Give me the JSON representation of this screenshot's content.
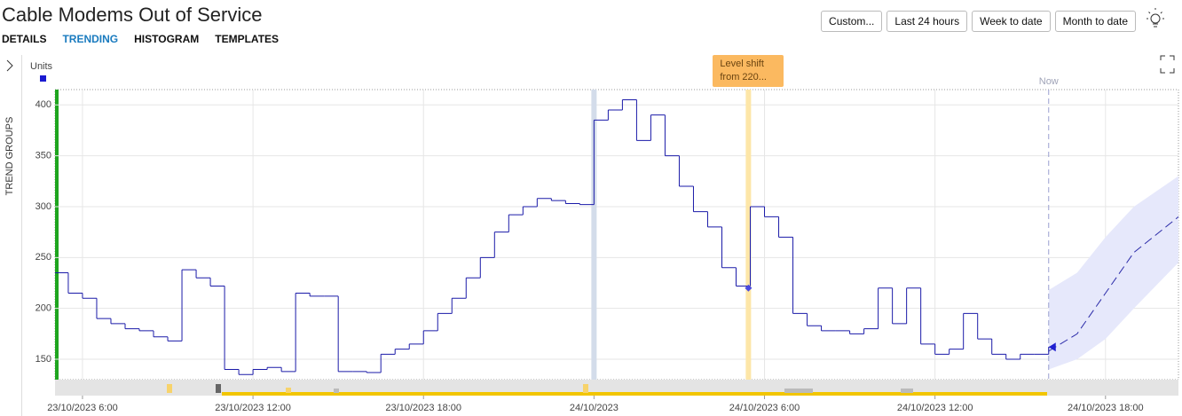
{
  "header": {
    "title": "Cable Modems Out of Service",
    "tabs": [
      "DETAILS",
      "TRENDING",
      "HISTOGRAM",
      "TEMPLATES"
    ],
    "active_tab": 1,
    "buttons": [
      "Custom...",
      "Last 24 hours",
      "Week to date",
      "Month to date"
    ]
  },
  "sidebar": {
    "label": "TREND GROUPS"
  },
  "chart_data": {
    "type": "line",
    "y_label": "Units",
    "color": "#1a1aa8",
    "xlim": [
      "23/10/2023 5:02",
      "24/10/2023 20:34"
    ],
    "xticks": [
      "23/10/2023 6:00",
      "23/10/2023 12:00",
      "23/10/2023 18:00",
      "24/10/2023",
      "24/10/2023 6:00",
      "24/10/2023 12:00",
      "24/10/2023 18:00"
    ],
    "ylim": [
      130,
      415
    ],
    "yticks": [
      150,
      200,
      250,
      300,
      350,
      400
    ],
    "grid": true,
    "x": [
      "23/10/2023 5:02",
      "23/10/2023 5:30",
      "23/10/2023 6:00",
      "23/10/2023 6:30",
      "23/10/2023 7:00",
      "23/10/2023 7:30",
      "23/10/2023 8:00",
      "23/10/2023 8:30",
      "23/10/2023 9:00",
      "23/10/2023 9:30",
      "23/10/2023 10:00",
      "23/10/2023 10:30",
      "23/10/2023 11:00",
      "23/10/2023 11:30",
      "23/10/2023 12:00",
      "23/10/2023 12:30",
      "23/10/2023 13:00",
      "23/10/2023 13:30",
      "23/10/2023 14:00",
      "23/10/2023 14:30",
      "23/10/2023 15:00",
      "23/10/2023 15:30",
      "23/10/2023 16:00",
      "23/10/2023 16:30",
      "23/10/2023 17:00",
      "23/10/2023 17:30",
      "23/10/2023 18:00",
      "23/10/2023 18:30",
      "23/10/2023 19:00",
      "23/10/2023 19:30",
      "23/10/2023 20:00",
      "23/10/2023 20:30",
      "23/10/2023 21:00",
      "23/10/2023 21:30",
      "23/10/2023 22:00",
      "23/10/2023 22:30",
      "23/10/2023 23:00",
      "23/10/2023 23:30",
      "24/10/2023 0:00",
      "24/10/2023 0:30",
      "24/10/2023 1:00",
      "24/10/2023 1:30",
      "24/10/2023 2:00",
      "24/10/2023 2:30",
      "24/10/2023 3:00",
      "24/10/2023 3:30",
      "24/10/2023 4:00",
      "24/10/2023 4:30",
      "24/10/2023 5:00",
      "24/10/2023 5:30",
      "24/10/2023 6:00",
      "24/10/2023 6:30",
      "24/10/2023 7:00",
      "24/10/2023 7:30",
      "24/10/2023 8:00",
      "24/10/2023 8:30",
      "24/10/2023 9:00",
      "24/10/2023 9:30",
      "24/10/2023 10:00",
      "24/10/2023 10:30",
      "24/10/2023 11:00",
      "24/10/2023 11:30",
      "24/10/2023 12:00",
      "24/10/2023 12:30",
      "24/10/2023 13:00",
      "24/10/2023 13:30",
      "24/10/2023 14:00",
      "24/10/2023 14:30",
      "24/10/2023 15:00",
      "24/10/2023 15:30",
      "24/10/2023 16:00"
    ],
    "values": [
      235,
      215,
      210,
      190,
      185,
      180,
      178,
      172,
      168,
      238,
      230,
      222,
      140,
      135,
      140,
      142,
      138,
      215,
      212,
      212,
      138,
      138,
      137,
      155,
      160,
      165,
      178,
      195,
      210,
      230,
      250,
      275,
      292,
      300,
      308,
      306,
      303,
      302,
      385,
      395,
      405,
      365,
      390,
      350,
      320,
      295,
      280,
      240,
      222,
      300,
      290,
      270,
      195,
      183,
      178,
      178,
      175,
      180,
      220,
      185,
      220,
      165,
      155,
      160,
      195,
      170,
      155,
      150,
      155,
      155,
      162
    ],
    "forecast": {
      "color": "#2a2aa8",
      "band_color": "#e6e8fb",
      "x": [
        "24/10/2023 16:00",
        "24/10/2023 17:00",
        "24/10/2023 18:00",
        "24/10/2023 19:00",
        "24/10/2023 20:34"
      ],
      "values": [
        158,
        175,
        215,
        255,
        290
      ],
      "lower": [
        140,
        150,
        170,
        200,
        245
      ],
      "upper": [
        218,
        235,
        270,
        300,
        330
      ]
    },
    "highlights": [
      {
        "x": "24/10/2023 0:00",
        "color": "#d3dcea"
      },
      {
        "x": "24/10/2023 5:26",
        "color": "#fde6a8"
      }
    ],
    "annotation": {
      "text": "Level shift from 220...",
      "x": "24/10/2023 5:26",
      "value": 220,
      "color": "#fbb960"
    },
    "now": {
      "label": "Now",
      "x": "24/10/2023 16:00"
    }
  }
}
